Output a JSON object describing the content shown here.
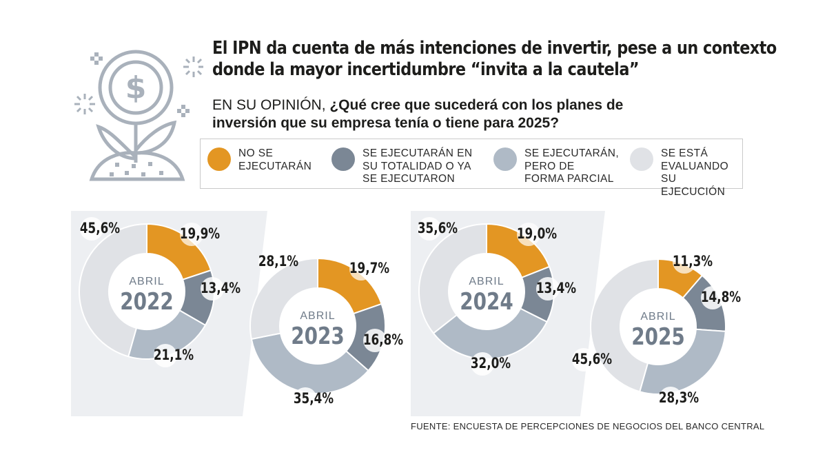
{
  "header": {
    "title_line1": "El IPN da cuenta de más intenciones de invertir, pese a un contexto",
    "title_line2": "donde la mayor incertidumbre “invita a la cautela”",
    "question_prefix": "EN SU OPINIÓN, ",
    "question_line1": "¿Qué cree que sucederá con los planes de",
    "question_line2": "inversión que su empresa tenía o tiene para 2025?"
  },
  "legend": {
    "items": [
      {
        "label": "NO SE\nEJECUTARÁN",
        "color": "#e39623"
      },
      {
        "label": "SE EJECUTARÁN EN\nSU TOTALIDAD O YA\nSE EJECUTARON",
        "color": "#7b8795"
      },
      {
        "label": "SE EJECUTARÁN,\nPERO DE\nFORMA PARCIAL",
        "color": "#afbac6"
      },
      {
        "label": "SE ESTÁ\nEVALUANDO\nSU EJECUCIÓN",
        "color": "#e0e2e6"
      }
    ]
  },
  "colors": {
    "no_se_ejecutaran": "#e39623",
    "totalidad": "#7b8795",
    "parcial": "#afbac6",
    "evaluando": "#e0e2e6",
    "panel": "#edeff2",
    "center_text": "#6f7b89",
    "icon_gray": "#a9b1bb"
  },
  "icon": "money-plant-icon",
  "chart_data": [
    {
      "type": "donut",
      "label_top": "ABRIL",
      "label_year": "2022",
      "series": [
        "NO SE EJECUTARÁN",
        "SE EJECUTARÁN EN SU TOTALIDAD O YA SE EJECUTARON",
        "SE EJECUTARÁN, PERO DE FORMA PARCIAL",
        "SE ESTÁ EVALUANDO SU EJECUCIÓN"
      ],
      "values": [
        19.9,
        13.4,
        21.1,
        45.6
      ],
      "labels": [
        "19,9%",
        "13,4%",
        "21,1%",
        "45,6%"
      ]
    },
    {
      "type": "donut",
      "label_top": "ABRIL",
      "label_year": "2023",
      "series": [
        "NO SE EJECUTARÁN",
        "SE EJECUTARÁN EN SU TOTALIDAD O YA SE EJECUTARON",
        "SE EJECUTARÁN, PERO DE FORMA PARCIAL",
        "SE ESTÁ EVALUANDO SU EJECUCIÓN"
      ],
      "values": [
        19.7,
        16.8,
        35.4,
        28.1
      ],
      "labels": [
        "19,7%",
        "16,8%",
        "35,4%",
        "28,1%"
      ]
    },
    {
      "type": "donut",
      "label_top": "ABRIL",
      "label_year": "2024",
      "series": [
        "NO SE EJECUTARÁN",
        "SE EJECUTARÁN EN SU TOTALIDAD O YA SE EJECUTARON",
        "SE EJECUTARÁN, PERO DE FORMA PARCIAL",
        "SE ESTÁ EVALUANDO SU EJECUCIÓN"
      ],
      "values": [
        19.0,
        13.4,
        32.0,
        35.6
      ],
      "labels": [
        "19,0%",
        "13,4%",
        "32,0%",
        "35,6%"
      ]
    },
    {
      "type": "donut",
      "label_top": "ABRIL",
      "label_year": "2025",
      "series": [
        "NO SE EJECUTARÁN",
        "SE EJECUTARÁN EN SU TOTALIDAD O YA SE EJECUTARON",
        "SE EJECUTARÁN, PERO DE FORMA PARCIAL",
        "SE ESTÁ EVALUANDO SU EJECUCIÓN"
      ],
      "values": [
        11.3,
        14.8,
        28.3,
        45.6
      ],
      "labels": [
        "11,3%",
        "14,8%",
        "28,3%",
        "45,6%"
      ]
    }
  ],
  "footer": {
    "source": "FUENTE: ENCUESTA DE PERCEPCIONES DE NEGOCIOS DEL BANCO CENTRAL"
  }
}
